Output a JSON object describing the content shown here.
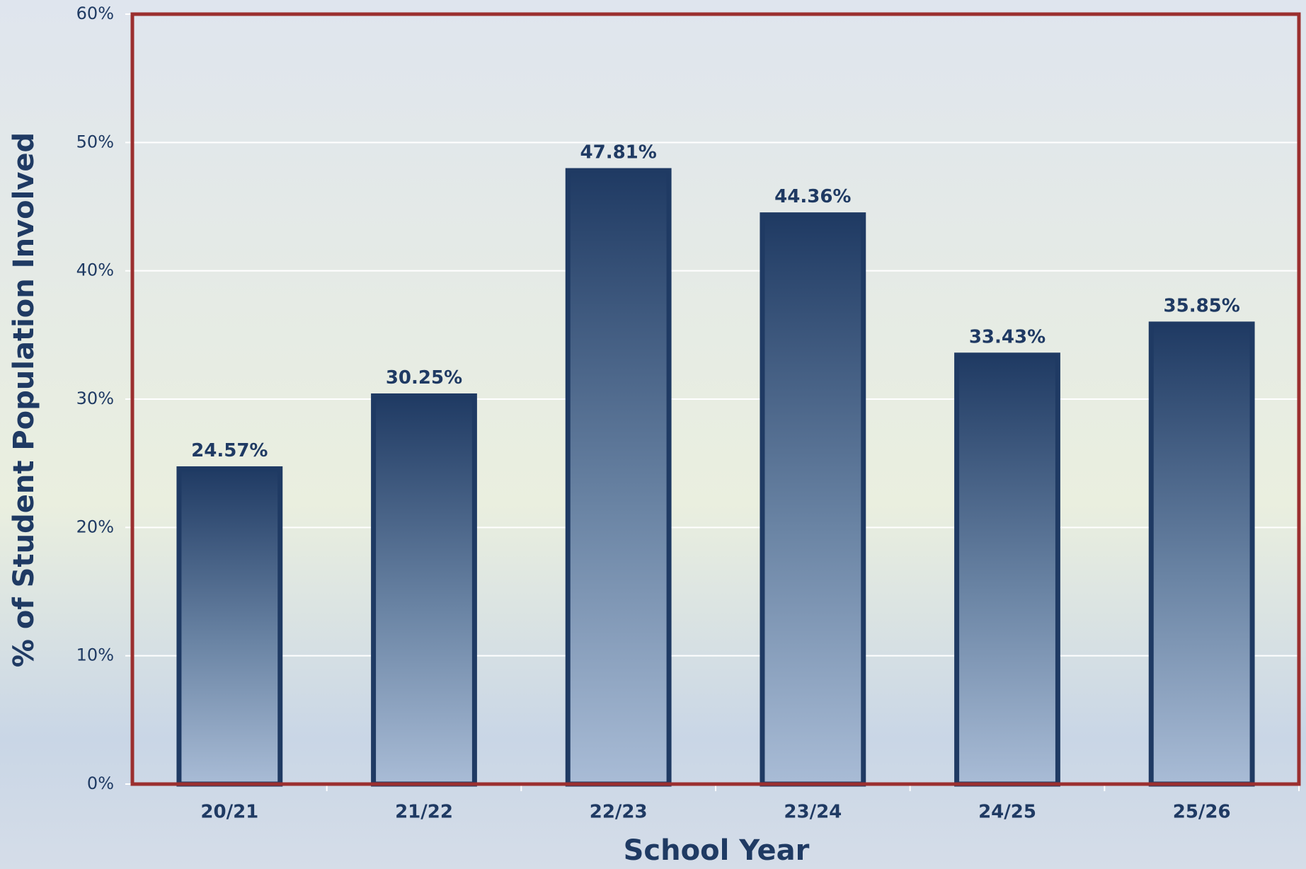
{
  "chart_data": {
    "type": "bar",
    "xlabel": "School Year",
    "ylabel": "% of Student Population Involved",
    "categories": [
      "20/21",
      "21/22",
      "22/23",
      "23/24",
      "24/25",
      "25/26"
    ],
    "values": [
      24.57,
      30.25,
      47.81,
      44.36,
      33.43,
      35.85
    ],
    "value_labels": [
      "24.57%",
      "30.25%",
      "47.81%",
      "44.36%",
      "33.43%",
      "35.85%"
    ],
    "color": "#1f3a63",
    "ylim": [
      0,
      60
    ],
    "yticks": [
      {
        "value": 0,
        "label": "0%"
      },
      {
        "value": 10,
        "label": "10%"
      },
      {
        "value": 20,
        "label": "20%"
      },
      {
        "value": 30,
        "label": "30%"
      },
      {
        "value": 40,
        "label": "40%"
      },
      {
        "value": 50,
        "label": "50%"
      },
      {
        "value": 60,
        "label": "60%"
      }
    ],
    "grid": true
  }
}
